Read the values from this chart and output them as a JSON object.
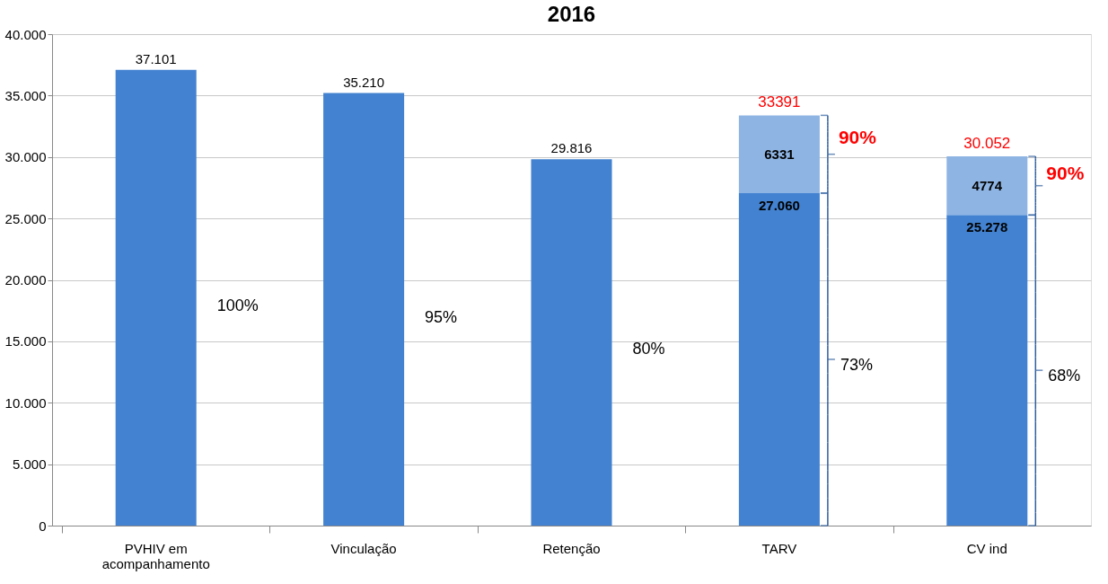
{
  "chart_data": {
    "type": "bar",
    "title": "2016",
    "stacked": true,
    "categories": [
      "PVHIV em acompanhamento",
      "Vinculação",
      "Retenção",
      "TARV",
      "CV ind"
    ],
    "series": [
      {
        "color": "#4282d0",
        "values": [
          37101,
          35210,
          29816,
          27060,
          25278
        ],
        "value_labels": [
          "37.101",
          "35.210",
          "29.816",
          "27.060",
          "25.278"
        ]
      },
      {
        "color": "#8eb4e3",
        "values": [
          null,
          null,
          null,
          6331,
          4774
        ],
        "value_labels": [
          null,
          null,
          null,
          "6331",
          "4774"
        ]
      }
    ],
    "totals": [
      null,
      null,
      null,
      "33391",
      "30.052"
    ],
    "ylim": [
      0,
      40000
    ],
    "yticks": [
      {
        "value": 0,
        "label": "0"
      },
      {
        "value": 5000,
        "label": "5.000"
      },
      {
        "value": 10000,
        "label": "10.000"
      },
      {
        "value": 15000,
        "label": "15.000"
      },
      {
        "value": 20000,
        "label": "20.000"
      },
      {
        "value": 25000,
        "label": "25.000"
      },
      {
        "value": 30000,
        "label": "30.000"
      },
      {
        "value": 35000,
        "label": "35.000"
      },
      {
        "value": 40000,
        "label": "40.000"
      }
    ],
    "grid": "y",
    "annotations": [
      "100%",
      "95%",
      "80%",
      "73%",
      "68%",
      "90%",
      "90%"
    ]
  }
}
